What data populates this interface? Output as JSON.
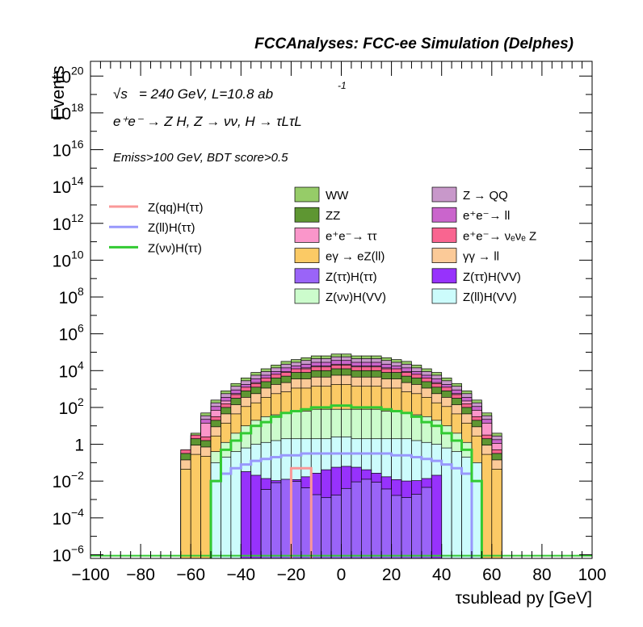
{
  "header_title": "FCCAnalyses: FCC-ee Simulation (Delphes)",
  "info": {
    "sqrt_s_pre": "√s",
    "energy_lumi": "= 240 GeV, L=10.8 ab",
    "lumi_exp": "-1",
    "process": "e⁺e⁻ → Z H, Z → νν, H → τLτL",
    "selection": "Emiss>100 GeV, BDT score>0.5"
  },
  "colors": {
    "WW": "#96CC68",
    "ZZ": "#5E9632",
    "ee_tautau": "#FA96CA",
    "egamma_eZll": "#FBCA65",
    "Ztautau_Htautau": "#9A64F8",
    "Znunu_HVV": "#CCFCCC",
    "Z_QQ": "#C898CA",
    "ee_ll": "#CA65CC",
    "ee_nunuZ": "#F96590",
    "gammagamma_ll": "#FBCA98",
    "Ztautau_HVV": "#9732FC",
    "Zll_HVV": "#CCFCFC",
    "line_qq": "#FA9898",
    "line_ll": "#9898FC",
    "line_nunu": "#32CA32"
  },
  "chart_data": {
    "type": "histogram-stacked-log",
    "xlabel": "τsublead py [GeV]",
    "ylabel": "Events",
    "xlim": [
      -100,
      100
    ],
    "ylim_log10": [
      -6.2,
      20.8
    ],
    "x_ticks": [
      "−100",
      "−80",
      "−60",
      "−40",
      "−20",
      "0",
      "20",
      "40",
      "60",
      "80",
      "100"
    ],
    "y_ticks": [
      {
        "log": -6,
        "base": "10",
        "exp": "−6"
      },
      {
        "log": -4,
        "base": "10",
        "exp": "−4"
      },
      {
        "log": -2,
        "base": "10",
        "exp": "−2"
      },
      {
        "log": 0,
        "base": "1",
        "exp": ""
      },
      {
        "log": 2,
        "base": "10",
        "exp": "2"
      },
      {
        "log": 4,
        "base": "10",
        "exp": "4"
      },
      {
        "log": 6,
        "base": "10",
        "exp": "6"
      },
      {
        "log": 8,
        "base": "10",
        "exp": "8"
      },
      {
        "log": 10,
        "base": "10",
        "exp": "10"
      },
      {
        "log": 12,
        "base": "10",
        "exp": "12"
      },
      {
        "log": 14,
        "base": "10",
        "exp": "14"
      },
      {
        "log": 16,
        "base": "10",
        "exp": "16"
      },
      {
        "log": 18,
        "base": "10",
        "exp": "18"
      },
      {
        "log": 20,
        "base": "10",
        "exp": "20"
      }
    ],
    "bin_width": 4,
    "stack_tops_log10": {
      "WW": [
        [
          -64,
          -0.3
        ],
        [
          -60,
          0.6
        ],
        [
          -56,
          1.7
        ],
        [
          -52,
          2.4
        ],
        [
          -48,
          2.9
        ],
        [
          -44,
          3.3
        ],
        [
          -40,
          3.6
        ],
        [
          -36,
          3.9
        ],
        [
          -32,
          4.1
        ],
        [
          -28,
          4.3
        ],
        [
          -24,
          4.5
        ],
        [
          -20,
          4.6
        ],
        [
          -16,
          4.7
        ],
        [
          -12,
          4.8
        ],
        [
          -8,
          4.8
        ],
        [
          -4,
          4.9
        ],
        [
          0,
          4.9
        ],
        [
          4,
          4.8
        ],
        [
          8,
          4.8
        ],
        [
          12,
          4.8
        ],
        [
          16,
          4.7
        ],
        [
          20,
          4.6
        ],
        [
          24,
          4.5
        ],
        [
          28,
          4.3
        ],
        [
          32,
          4.1
        ],
        [
          36,
          3.9
        ],
        [
          40,
          3.6
        ],
        [
          44,
          3.3
        ],
        [
          48,
          2.9
        ],
        [
          52,
          2.4
        ],
        [
          56,
          1.7
        ],
        [
          60,
          0.6
        ]
      ],
      "ZZ": [
        [
          -64,
          -0.5
        ],
        [
          -60,
          0.3
        ],
        [
          -56,
          0.2
        ],
        [
          -52,
          1.3
        ],
        [
          -48,
          2.0
        ],
        [
          -44,
          2.5
        ],
        [
          -40,
          2.9
        ],
        [
          -36,
          3.1
        ],
        [
          -32,
          3.4
        ],
        [
          -28,
          3.6
        ],
        [
          -24,
          3.7
        ],
        [
          -20,
          3.9
        ],
        [
          -16,
          3.9
        ],
        [
          -12,
          4.0
        ],
        [
          -8,
          4.0
        ],
        [
          -4,
          4.1
        ],
        [
          0,
          4.1
        ],
        [
          4,
          4.0
        ],
        [
          8,
          4.0
        ],
        [
          12,
          4.0
        ],
        [
          16,
          3.9
        ],
        [
          20,
          3.9
        ],
        [
          24,
          3.7
        ],
        [
          28,
          3.6
        ],
        [
          32,
          3.4
        ],
        [
          36,
          3.1
        ],
        [
          40,
          2.9
        ],
        [
          44,
          2.5
        ],
        [
          48,
          2.0
        ],
        [
          52,
          1.3
        ],
        [
          56,
          0.3
        ],
        [
          60,
          -0.5
        ]
      ],
      "Znunu_HVV": [
        [
          -52,
          -0.4
        ],
        [
          -48,
          0.1
        ],
        [
          -44,
          0.6
        ],
        [
          -40,
          1.0
        ],
        [
          -36,
          1.3
        ],
        [
          -32,
          1.5
        ],
        [
          -28,
          1.6
        ],
        [
          -24,
          1.7
        ],
        [
          -20,
          1.8
        ],
        [
          -16,
          1.8
        ],
        [
          -12,
          1.9
        ],
        [
          -8,
          1.9
        ],
        [
          -4,
          1.9
        ],
        [
          0,
          1.9
        ],
        [
          4,
          1.9
        ],
        [
          8,
          1.9
        ],
        [
          12,
          1.9
        ],
        [
          16,
          1.8
        ],
        [
          20,
          1.8
        ],
        [
          24,
          1.7
        ],
        [
          28,
          1.6
        ],
        [
          32,
          1.5
        ],
        [
          36,
          1.3
        ],
        [
          40,
          1.0
        ],
        [
          44,
          0.6
        ],
        [
          48,
          0.1
        ]
      ],
      "Zll_HVV": [
        [
          -52,
          -1.0
        ],
        [
          -48,
          -0.7
        ],
        [
          -44,
          -0.4
        ],
        [
          -40,
          -0.2
        ],
        [
          -36,
          0.0
        ],
        [
          -32,
          0.1
        ],
        [
          -28,
          0.2
        ],
        [
          -24,
          0.3
        ],
        [
          -20,
          0.3
        ],
        [
          -16,
          0.3
        ],
        [
          -12,
          0.3
        ],
        [
          -8,
          0.3
        ],
        [
          -4,
          0.4
        ],
        [
          0,
          0.4
        ],
        [
          4,
          0.3
        ],
        [
          8,
          0.3
        ],
        [
          12,
          0.3
        ],
        [
          16,
          0.3
        ],
        [
          20,
          0.3
        ],
        [
          24,
          0.3
        ],
        [
          28,
          0.2
        ],
        [
          32,
          0.1
        ],
        [
          36,
          0.0
        ],
        [
          40,
          -0.2
        ],
        [
          44,
          -0.4
        ],
        [
          48,
          -0.7
        ],
        [
          52,
          -1.0
        ]
      ]
    },
    "overlay_lines_log10": {
      "Z(qq)H(ττ)": [
        [
          -20,
          -1.3
        ],
        [
          -16,
          -1.3
        ]
      ],
      "Z(ll)H(ττ)": [
        [
          -52,
          -2.0
        ],
        [
          -48,
          -1.6
        ],
        [
          -44,
          -1.3
        ],
        [
          -40,
          -1.1
        ],
        [
          -36,
          -0.9
        ],
        [
          -32,
          -0.8
        ],
        [
          -28,
          -0.7
        ],
        [
          -24,
          -0.6
        ],
        [
          -20,
          -0.6
        ],
        [
          -16,
          -0.5
        ],
        [
          -12,
          -0.5
        ],
        [
          -8,
          -0.5
        ],
        [
          -4,
          -0.5
        ],
        [
          0,
          -0.5
        ],
        [
          4,
          -0.5
        ],
        [
          8,
          -0.5
        ],
        [
          12,
          -0.5
        ],
        [
          16,
          -0.5
        ],
        [
          20,
          -0.6
        ],
        [
          24,
          -0.6
        ],
        [
          28,
          -0.7
        ],
        [
          32,
          -0.8
        ],
        [
          36,
          -0.9
        ],
        [
          40,
          -1.1
        ],
        [
          44,
          -1.3
        ],
        [
          48,
          -1.6
        ]
      ],
      "Z(νν)H(ττ)": [
        [
          -52,
          -2.0
        ],
        [
          -48,
          -0.3
        ],
        [
          -44,
          0.2
        ],
        [
          -40,
          0.6
        ],
        [
          -36,
          1.0
        ],
        [
          -32,
          1.2
        ],
        [
          -28,
          1.5
        ],
        [
          -24,
          1.7
        ],
        [
          -20,
          1.8
        ],
        [
          -16,
          1.9
        ],
        [
          -12,
          2.0
        ],
        [
          -8,
          2.0
        ],
        [
          -4,
          2.1
        ],
        [
          0,
          2.1
        ],
        [
          4,
          2.0
        ],
        [
          8,
          2.0
        ],
        [
          12,
          2.0
        ],
        [
          16,
          1.9
        ],
        [
          20,
          1.8
        ],
        [
          24,
          1.7
        ],
        [
          28,
          1.5
        ],
        [
          32,
          1.2
        ],
        [
          36,
          1.0
        ],
        [
          40,
          0.6
        ],
        [
          44,
          0.2
        ],
        [
          48,
          -0.3
        ],
        [
          52,
          -2.0
        ]
      ]
    },
    "legend": [
      {
        "label": "WW",
        "key": "WW",
        "kind": "fill",
        "column": 1
      },
      {
        "label": "ZZ",
        "key": "ZZ",
        "kind": "fill",
        "column": 1
      },
      {
        "label": "e⁺e⁻→ ττ",
        "key": "ee_tautau",
        "kind": "fill",
        "column": 1
      },
      {
        "label": "eγ → eZ(ll)",
        "key": "egamma_eZll",
        "kind": "fill",
        "column": 1
      },
      {
        "label": "Z(ττ)H(ττ)",
        "key": "Ztautau_Htautau",
        "kind": "fill",
        "column": 1
      },
      {
        "label": "Z(νν)H(VV)",
        "key": "Znunu_HVV",
        "kind": "fill",
        "column": 1
      },
      {
        "label": "Z → QQ",
        "key": "Z_QQ",
        "kind": "fill",
        "column": 2
      },
      {
        "label": "e⁺e⁻→ ll",
        "key": "ee_ll",
        "kind": "fill",
        "column": 2
      },
      {
        "label": "e⁺e⁻→ νₑνₑ Z",
        "key": "ee_nunuZ",
        "kind": "fill",
        "column": 2
      },
      {
        "label": "γγ → ll",
        "key": "gammagamma_ll",
        "kind": "fill",
        "column": 2
      },
      {
        "label": "Z(ττ)H(VV)",
        "key": "Ztautau_HVV",
        "kind": "fill",
        "column": 2
      },
      {
        "label": "Z(ll)H(VV)",
        "key": "Zll_HVV",
        "kind": "fill",
        "column": 2
      },
      {
        "label": "Z(qq)H(ττ)",
        "key": "line_qq",
        "kind": "line",
        "column": 0
      },
      {
        "label": "Z(ll)H(ττ)",
        "key": "line_ll",
        "kind": "line",
        "column": 0
      },
      {
        "label": "Z(νν)H(ττ)",
        "key": "line_nunu",
        "kind": "line",
        "column": 0
      }
    ]
  }
}
